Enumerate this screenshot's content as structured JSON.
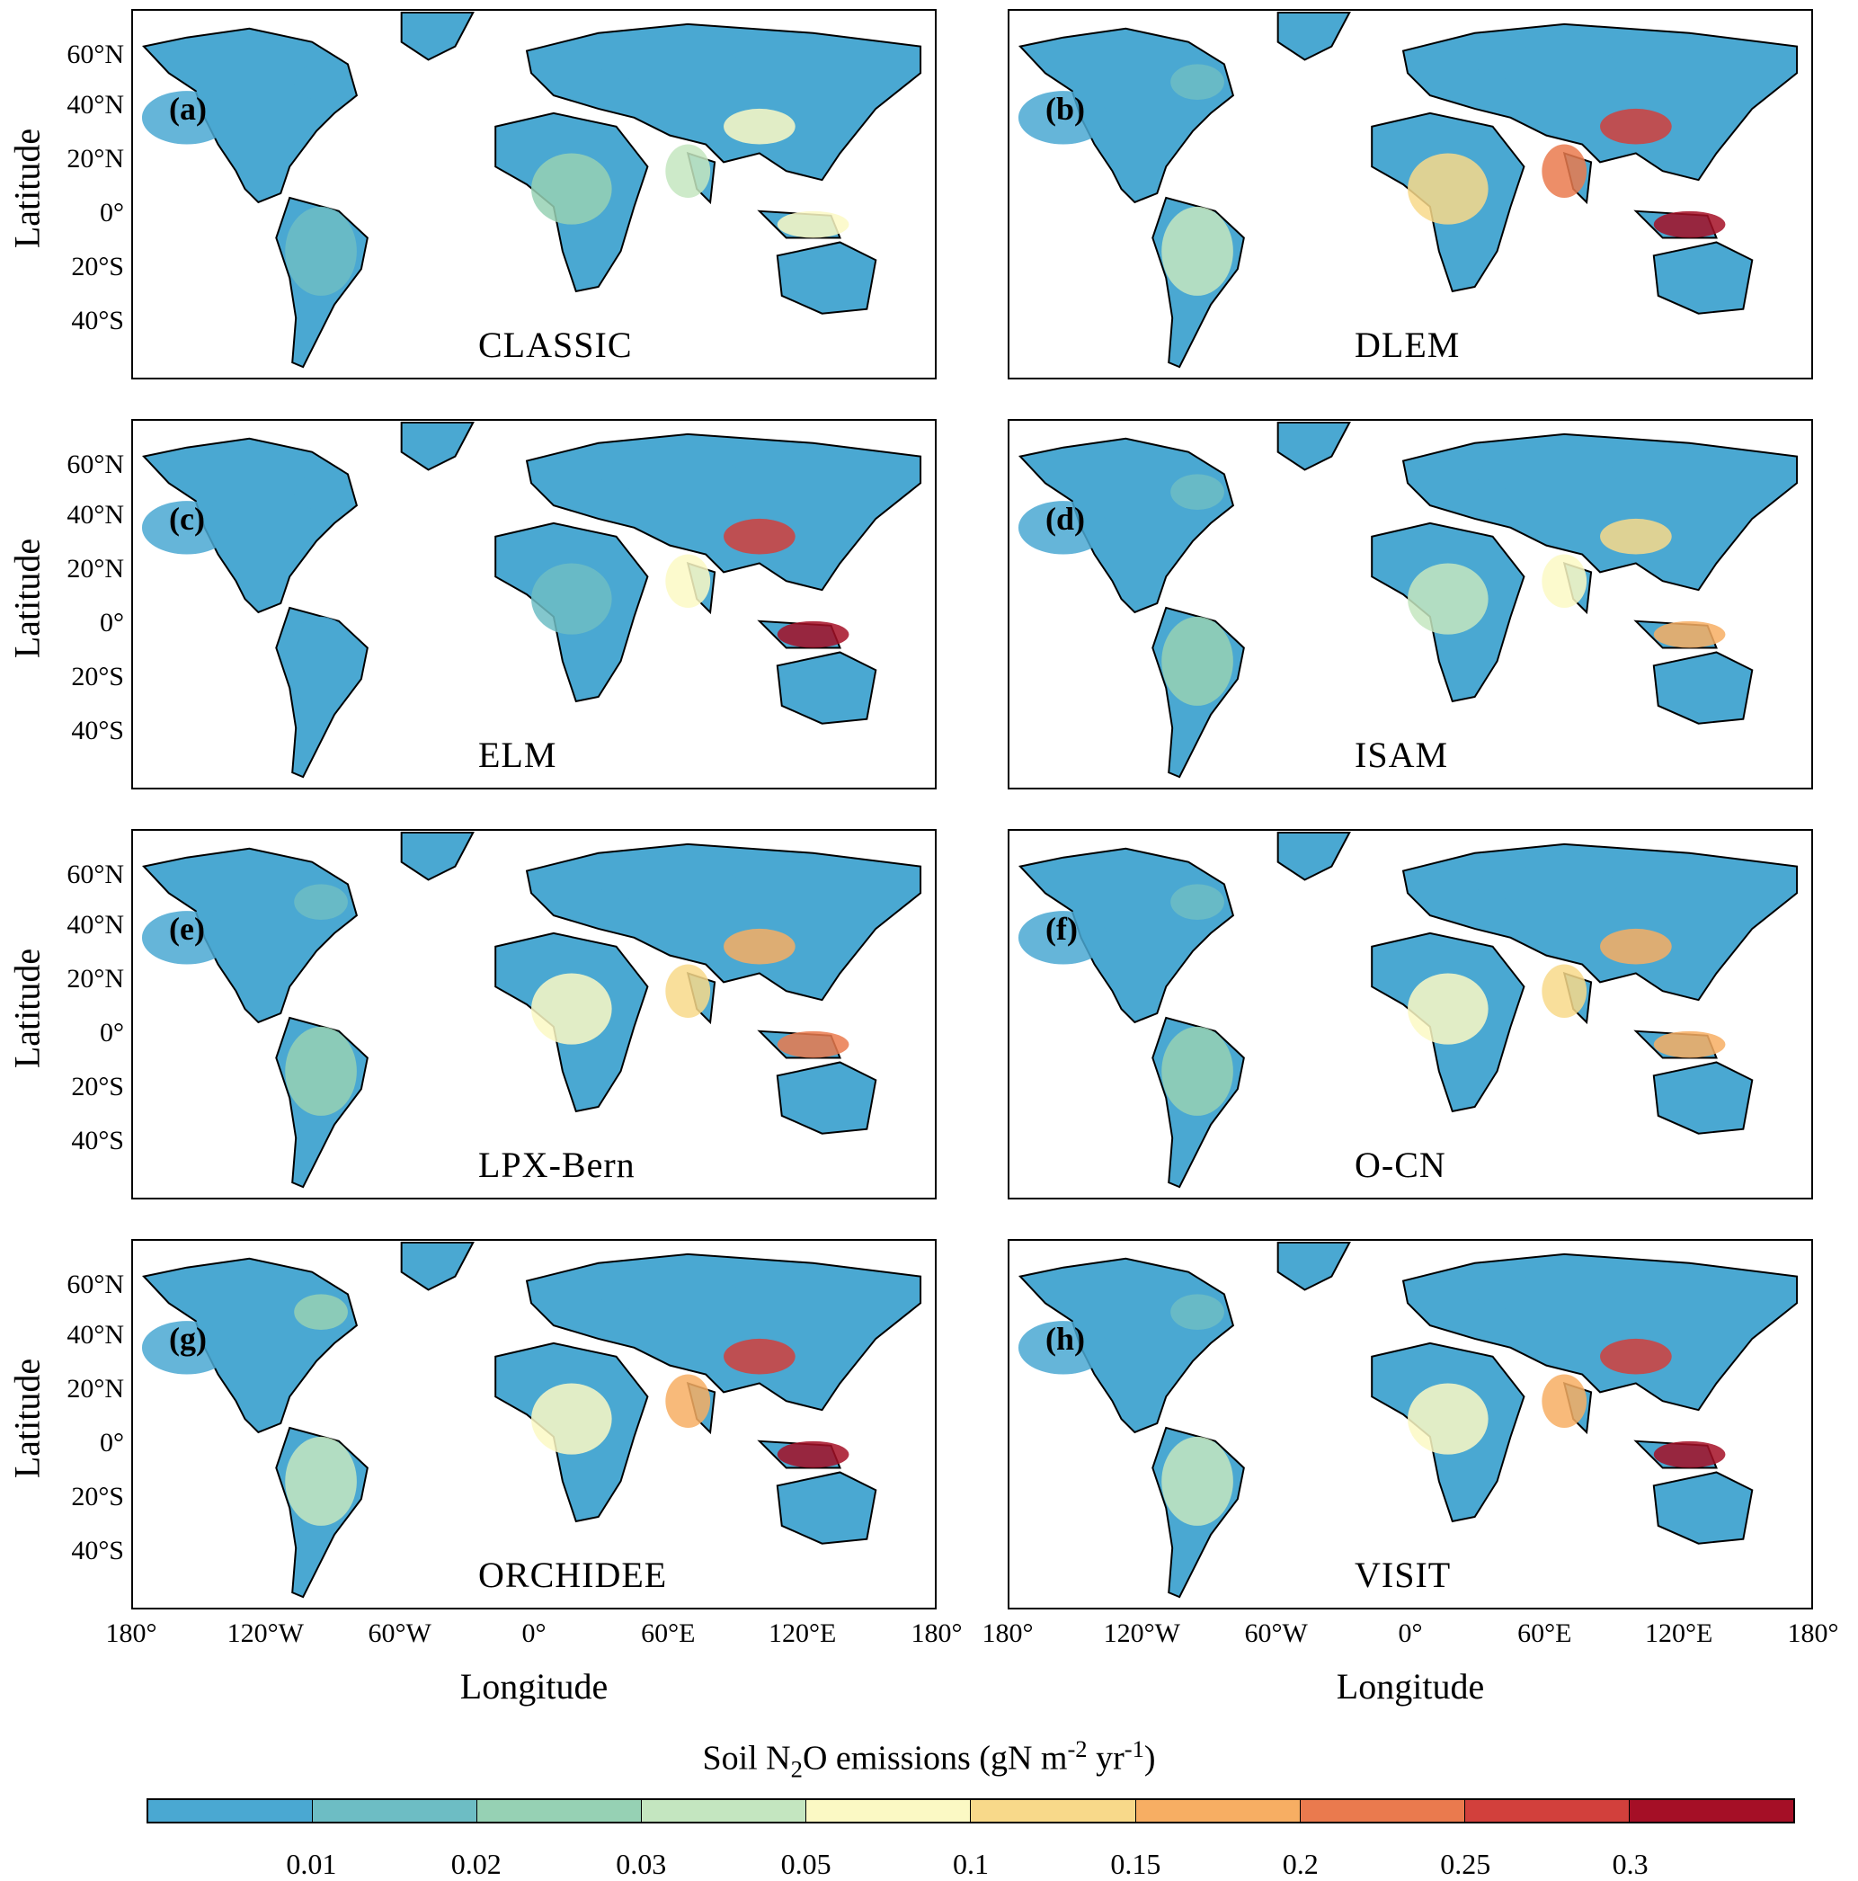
{
  "y_axis_label": "Latitude",
  "x_axis_label": "Longitude",
  "lat_ticks": [
    "60°N",
    "40°N",
    "20°N",
    "0°",
    "20°S",
    "40°S"
  ],
  "lon_ticks": [
    "180°",
    "120°W",
    "60°W",
    "0°",
    "60°E",
    "120°E",
    "180°"
  ],
  "panels": [
    {
      "letter": "(a)",
      "model": "CLASSIC"
    },
    {
      "letter": "(b)",
      "model": "DLEM"
    },
    {
      "letter": "(c)",
      "model": "ELM"
    },
    {
      "letter": "(d)",
      "model": "ISAM"
    },
    {
      "letter": "(e)",
      "model": "LPX-Bern"
    },
    {
      "letter": "(f)",
      "model": "O-CN"
    },
    {
      "letter": "(g)",
      "model": "ORCHIDEE"
    },
    {
      "letter": "(h)",
      "model": "VISIT"
    }
  ],
  "colorbar": {
    "title_prefix": "Soil N",
    "title_sub": "2",
    "title_mid": "O emissions (gN m",
    "title_sup1": "-2",
    "title_mid2": " yr",
    "title_sup2": "-1",
    "title_suffix": ")",
    "tick_labels": [
      "0.01",
      "0.02",
      "0.03",
      "0.05",
      "0.1",
      "0.15",
      "0.2",
      "0.25",
      "0.3"
    ],
    "colors": [
      "#4aa8d2",
      "#6dbdc4",
      "#96d1b4",
      "#c4e6c0",
      "#fbf9c4",
      "#f8d98a",
      "#f7ae63",
      "#ea7a4e",
      "#d2403c",
      "#a50f26"
    ]
  }
}
